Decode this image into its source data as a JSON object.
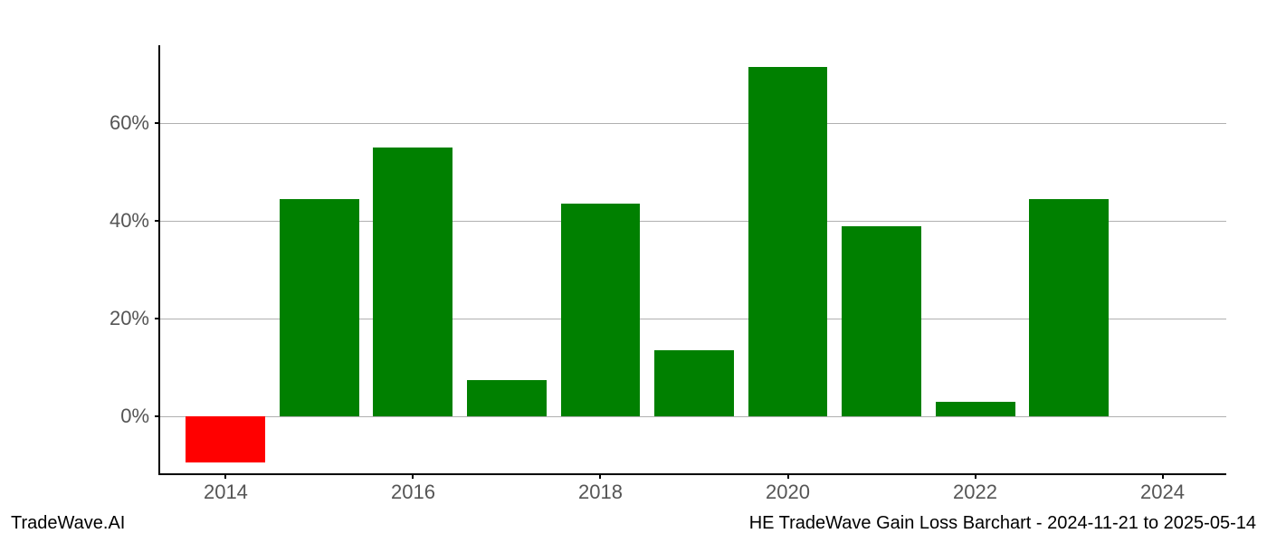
{
  "chart": {
    "type": "bar",
    "years": [
      2014,
      2015,
      2016,
      2017,
      2018,
      2019,
      2020,
      2021,
      2022,
      2023
    ],
    "values": [
      -9.5,
      44.5,
      55,
      7.5,
      43.5,
      13.5,
      71.5,
      39,
      3,
      44.5
    ],
    "bar_colors": [
      "#ff0000",
      "#008000",
      "#008000",
      "#008000",
      "#008000",
      "#008000",
      "#008000",
      "#008000",
      "#008000",
      "#008000"
    ],
    "y_min": -12,
    "y_max": 76,
    "y_ticks": [
      0,
      20,
      40,
      60
    ],
    "y_tick_labels": [
      "0%",
      "20%",
      "40%",
      "60%"
    ],
    "x_tick_years": [
      2014,
      2016,
      2018,
      2020,
      2022,
      2024
    ],
    "x_tick_labels": [
      "2014",
      "2016",
      "2018",
      "2020",
      "2022",
      "2024"
    ],
    "x_min": 2013.3,
    "x_max": 2024.7,
    "bar_width_years": 0.85,
    "background_color": "#ffffff",
    "grid_color": "#b0b0b0",
    "axis_color": "#000000",
    "tick_label_color": "#555555",
    "tick_fontsize": 22
  },
  "footer": {
    "left": "TradeWave.AI",
    "right": "HE TradeWave Gain Loss Barchart - 2024-11-21 to 2025-05-14",
    "fontsize": 20,
    "color": "#000000"
  }
}
